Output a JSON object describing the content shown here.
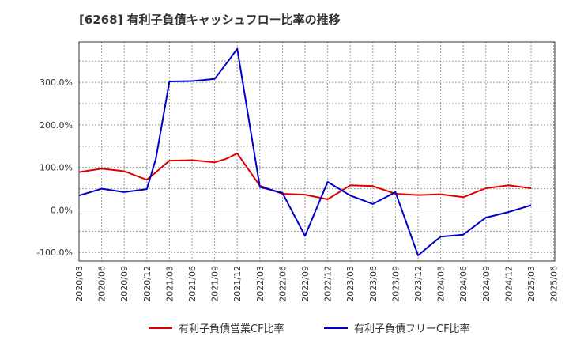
{
  "chart_data": {
    "type": "line",
    "title": "[6268]  有利子負債キャッシュフロー比率の推移",
    "xlabel": "",
    "ylabel": "",
    "ylim": [
      -120,
      395
    ],
    "y_ticks": [
      -100,
      0,
      100,
      200,
      300
    ],
    "y_tick_labels": [
      "-100.0%",
      "0.0%",
      "100.0%",
      "200.0%",
      "300.0%"
    ],
    "x_tick_labels": [
      "2020/03",
      "2020/06",
      "2020/09",
      "2020/12",
      "2021/03",
      "2021/06",
      "2021/09",
      "2021/12",
      "2022/03",
      "2022/06",
      "2022/09",
      "2022/12",
      "2023/03",
      "2023/06",
      "2023/09",
      "2023/12",
      "2024/03",
      "2024/06",
      "2024/09",
      "2024/12",
      "2025/03",
      "2025/06"
    ],
    "grid": true,
    "legend_position": "bottom",
    "series": [
      {
        "name": "有利子負債営業CF比率",
        "color": "#dd0000",
        "points": [
          {
            "x": 0,
            "y": 89
          },
          {
            "x": 1,
            "y": 97
          },
          {
            "x": 2,
            "y": 91
          },
          {
            "x": 3,
            "y": 71
          },
          {
            "x": 3.5,
            "y": 93
          },
          {
            "x": 4,
            "y": 116
          },
          {
            "x": 5,
            "y": 117
          },
          {
            "x": 6,
            "y": 112
          },
          {
            "x": 6.5,
            "y": 120
          },
          {
            "x": 7,
            "y": 133
          },
          {
            "x": 8,
            "y": 57
          },
          {
            "x": 9,
            "y": 38
          },
          {
            "x": 10,
            "y": 36
          },
          {
            "x": 11,
            "y": 25
          },
          {
            "x": 12,
            "y": 58
          },
          {
            "x": 13,
            "y": 56
          },
          {
            "x": 14,
            "y": 38
          },
          {
            "x": 15,
            "y": 35
          },
          {
            "x": 16,
            "y": 37
          },
          {
            "x": 17,
            "y": 30
          },
          {
            "x": 18,
            "y": 51
          },
          {
            "x": 19,
            "y": 58
          },
          {
            "x": 20,
            "y": 51
          }
        ]
      },
      {
        "name": "有利子負債フリーCF比率",
        "color": "#0000cc",
        "points": [
          {
            "x": 0,
            "y": 34
          },
          {
            "x": 1,
            "y": 50
          },
          {
            "x": 2,
            "y": 42
          },
          {
            "x": 3,
            "y": 49
          },
          {
            "x": 3.4,
            "y": 120
          },
          {
            "x": 4,
            "y": 302
          },
          {
            "x": 5,
            "y": 303
          },
          {
            "x": 6,
            "y": 308
          },
          {
            "x": 6.6,
            "y": 350
          },
          {
            "x": 7,
            "y": 379
          },
          {
            "x": 8,
            "y": 54
          },
          {
            "x": 9,
            "y": 40
          },
          {
            "x": 10,
            "y": -61
          },
          {
            "x": 11,
            "y": 66
          },
          {
            "x": 12,
            "y": 34
          },
          {
            "x": 13,
            "y": 14
          },
          {
            "x": 14,
            "y": 42
          },
          {
            "x": 15,
            "y": -107
          },
          {
            "x": 15.6,
            "y": -80
          },
          {
            "x": 16,
            "y": -63
          },
          {
            "x": 17,
            "y": -58
          },
          {
            "x": 18,
            "y": -18
          },
          {
            "x": 19,
            "y": -5
          },
          {
            "x": 19.5,
            "y": 3
          },
          {
            "x": 20,
            "y": 11
          }
        ]
      }
    ]
  }
}
